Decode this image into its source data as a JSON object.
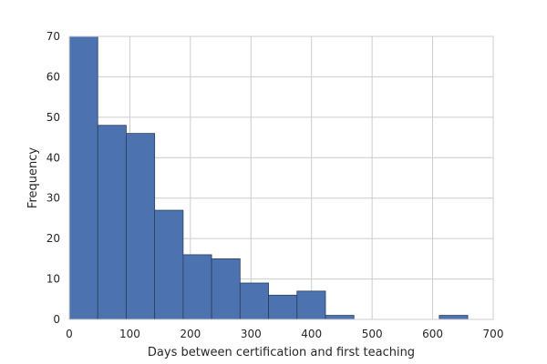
{
  "chart_data": {
    "type": "bar",
    "subtype": "histogram",
    "title": "",
    "xlabel": "Days between certification and first teaching",
    "ylabel": "Frequency",
    "xlim": [
      0,
      700
    ],
    "ylim": [
      0,
      70
    ],
    "xticks": [
      0,
      100,
      200,
      300,
      400,
      500,
      600,
      700
    ],
    "yticks": [
      0,
      10,
      20,
      30,
      40,
      50,
      60,
      70
    ],
    "grid": true,
    "bar_color": "#4c72b0",
    "bins": [
      {
        "x0": 0,
        "x1": 47,
        "count": 70
      },
      {
        "x0": 47,
        "x1": 94,
        "count": 48
      },
      {
        "x0": 94,
        "x1": 141,
        "count": 46
      },
      {
        "x0": 141,
        "x1": 188,
        "count": 27
      },
      {
        "x0": 188,
        "x1": 235,
        "count": 16
      },
      {
        "x0": 235,
        "x1": 282,
        "count": 15
      },
      {
        "x0": 282,
        "x1": 329,
        "count": 9
      },
      {
        "x0": 329,
        "x1": 376,
        "count": 6
      },
      {
        "x0": 376,
        "x1": 423,
        "count": 7
      },
      {
        "x0": 423,
        "x1": 470,
        "count": 1
      },
      {
        "x0": 470,
        "x1": 517,
        "count": 0
      },
      {
        "x0": 517,
        "x1": 564,
        "count": 0
      },
      {
        "x0": 564,
        "x1": 611,
        "count": 0
      },
      {
        "x0": 611,
        "x1": 658,
        "count": 1
      }
    ]
  }
}
